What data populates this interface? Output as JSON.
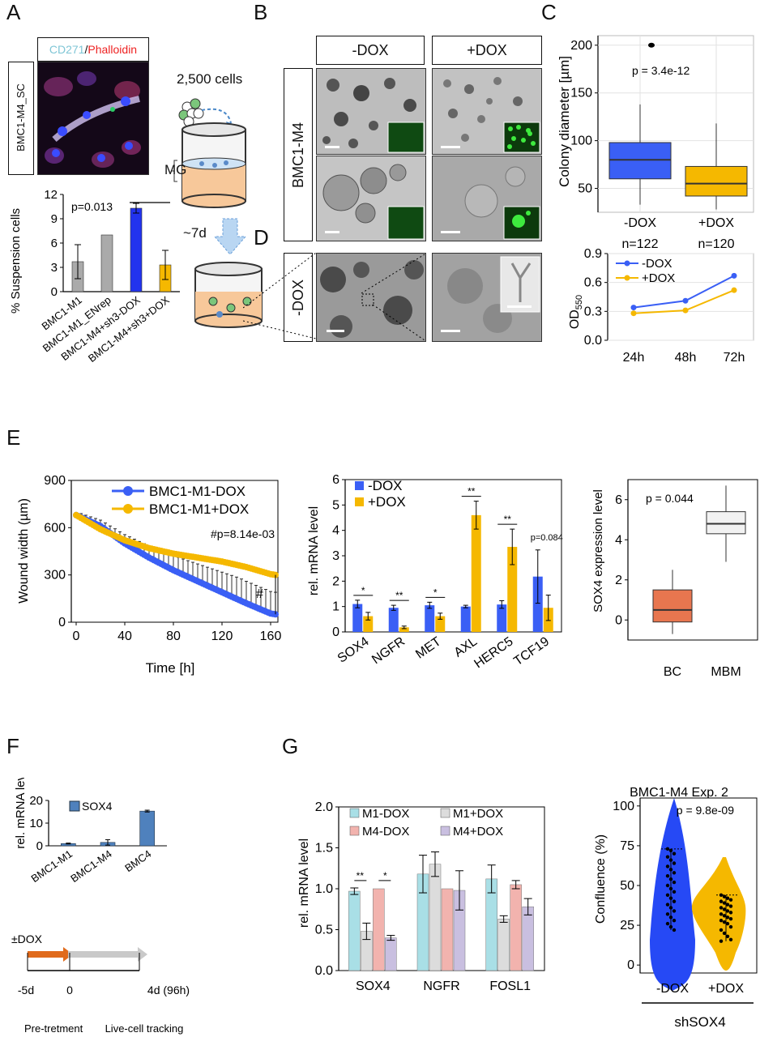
{
  "panels": {
    "A": "A",
    "B": "B",
    "C": "C",
    "D": "D",
    "E": "E",
    "F": "F",
    "G": "G"
  },
  "colors": {
    "blue": "#2233ee",
    "yellow": "#f5b800",
    "gray": "#aaaaaa",
    "orange": "#e8764f",
    "steel": "#4f81bd",
    "cyan": "#a9dfe6",
    "lightgray": "#dcdcdc",
    "pink": "#f2b3ae",
    "lavender": "#c9bfe0",
    "violet": "#3a5ff5"
  },
  "A": {
    "stain_label_1": "CD271",
    "stain_sep": "/",
    "stain_label_2": "Phalloidin",
    "side_label": "BMC1-M4_SC",
    "chart_data": {
      "type": "bar",
      "categories": [
        "BMC1-M1",
        "BMC1-M1_ENrep",
        "BMC1-M4+sh3-DOX",
        "BMC1-M4+sh3+DOX"
      ],
      "values": [
        3.7,
        7.0,
        10.3,
        3.3
      ],
      "errors": [
        2.1,
        0,
        0.6,
        1.8
      ],
      "colors": [
        "#aaaaaa",
        "#aaaaaa",
        "#2233ee",
        "#f5b800"
      ],
      "ylabel": "% Suspension cells",
      "ylim": [
        0,
        12
      ],
      "yticks": [
        "0",
        "3",
        "6",
        "9",
        "12"
      ],
      "annotation": "p=0.013"
    }
  },
  "B": {
    "col_minus": "-DOX",
    "col_plus": "+DOX",
    "row_label": "BMC1-M4",
    "cells_text": "2,500 cells",
    "mg_label": "MG",
    "days_label": "~7d"
  },
  "D": {
    "row_label": "-DOX"
  },
  "C": {
    "box": {
      "type": "box",
      "ylabel": "Colony diameter [µm]",
      "yticks": [
        "50",
        "100",
        "150",
        "200"
      ],
      "ylim": [
        25,
        210
      ],
      "categories": [
        "-DOX",
        "+DOX"
      ],
      "counts": [
        "n=122",
        "n=120"
      ],
      "annotation": "p = 3.4e-12",
      "groups": [
        {
          "name": "-DOX",
          "min": 33,
          "q1": 60,
          "median": 80,
          "q3": 98,
          "max": 138,
          "outlier": 200
        },
        {
          "name": "+DOX",
          "min": 28,
          "q1": 42,
          "median": 55,
          "q3": 73,
          "max": 118
        }
      ]
    },
    "line": {
      "type": "line",
      "ylabel_main": "OD",
      "ylabel_sub": "550",
      "categories": [
        "24h",
        "48h",
        "72h"
      ],
      "yticks": [
        "0.0",
        "0.3",
        "0.6",
        "0.9"
      ],
      "ylim": [
        0,
        0.9
      ],
      "series": [
        {
          "name": "-DOX",
          "values": [
            0.34,
            0.41,
            0.67
          ]
        },
        {
          "name": "+DOX",
          "values": [
            0.28,
            0.31,
            0.52
          ]
        }
      ]
    }
  },
  "E": {
    "wound": {
      "type": "line",
      "xlabel": "Time [h]",
      "ylabel": "Wound width (µm)",
      "xticks": [
        "0",
        "40",
        "80",
        "120",
        "160"
      ],
      "yticks": [
        "0",
        "300",
        "600",
        "900"
      ],
      "xlim": [
        -4,
        166
      ],
      "ylim": [
        0,
        900
      ],
      "annotation": "#p=8.14e-03",
      "hash": "#",
      "series": [
        {
          "name": "BMC1-M1-DOX",
          "anchors": [
            [
              0,
              680
            ],
            [
              20,
              610
            ],
            [
              40,
              500
            ],
            [
              60,
              410
            ],
            [
              80,
              330
            ],
            [
              100,
              260
            ],
            [
              120,
              190
            ],
            [
              140,
              120
            ],
            [
              160,
              55
            ],
            [
              164,
              50
            ]
          ]
        },
        {
          "name": "BMC1-M1+DOX",
          "anchors": [
            [
              0,
              680
            ],
            [
              20,
              590
            ],
            [
              40,
              520
            ],
            [
              60,
              470
            ],
            [
              80,
              435
            ],
            [
              100,
              410
            ],
            [
              120,
              385
            ],
            [
              140,
              350
            ],
            [
              160,
              305
            ],
            [
              164,
              300
            ]
          ]
        }
      ]
    },
    "mrna": {
      "type": "bar",
      "ylabel": "rel. mRNA level",
      "ylim": [
        0,
        6
      ],
      "yticks": [
        "0",
        "1",
        "2",
        "3",
        "4",
        "5",
        "6"
      ],
      "categories": [
        "SOX4",
        "NGFR",
        "MET",
        "AXL",
        "HERC5",
        "TCF19"
      ],
      "series": [
        {
          "name": "-DOX",
          "values": [
            1.1,
            0.95,
            1.05,
            1.0,
            1.08,
            2.18
          ],
          "errors": [
            0.15,
            0.1,
            0.12,
            0.05,
            0.15,
            1.05
          ]
        },
        {
          "name": "+DOX",
          "values": [
            0.62,
            0.18,
            0.62,
            4.6,
            3.35,
            0.95
          ],
          "errors": [
            0.15,
            0.05,
            0.12,
            0.55,
            0.7,
            0.5
          ]
        }
      ],
      "sig": [
        "*",
        "**",
        "*",
        "**",
        "**",
        "p=0.084"
      ]
    },
    "sox4": {
      "type": "box",
      "ylabel": "SOX4 expression level",
      "yticks": [
        "0",
        "2",
        "4",
        "6"
      ],
      "ylim": [
        -1,
        7
      ],
      "categories": [
        "BC",
        "MBM"
      ],
      "annotation": "p = 0.044",
      "groups": [
        {
          "name": "BC",
          "min": -0.7,
          "q1": -0.1,
          "median": 0.5,
          "q3": 1.5,
          "max": 2.5
        },
        {
          "name": "MBM",
          "min": 2.9,
          "q1": 4.3,
          "median": 4.8,
          "q3": 5.4,
          "max": 6.7
        }
      ]
    }
  },
  "F": {
    "chart_data": {
      "type": "bar",
      "ylabel": "rel. mRNA level",
      "ylim": [
        0,
        20
      ],
      "yticks": [
        "0",
        "10",
        "20"
      ],
      "categories": [
        "BMC1-M1",
        "BMC1-M4",
        "BMC4"
      ],
      "series": [
        {
          "name": "SOX4",
          "values": [
            1.0,
            1.5,
            15.3
          ],
          "errors": [
            0.2,
            1.2,
            0.4
          ]
        }
      ]
    },
    "timeline": {
      "dox": "±DOX",
      "t1": "-5d",
      "t2": "0",
      "t3": "4d (96h)",
      "phase1": "Pre-tretment",
      "phase2": "Live-cell tracking"
    }
  },
  "G": {
    "chart_data": {
      "type": "bar",
      "ylabel": "rel. mRNA level",
      "ylim": [
        0,
        2.0
      ],
      "yticks": [
        "0.0",
        "0.5",
        "1.0",
        "1.5",
        "2.0"
      ],
      "categories": [
        "SOX4",
        "NGFR",
        "FOSL1"
      ],
      "series": [
        {
          "name": "M1-DOX",
          "values": [
            0.97,
            1.18,
            1.12
          ],
          "errors": [
            0.04,
            0.23,
            0.17
          ]
        },
        {
          "name": "M1+DOX",
          "values": [
            0.48,
            1.3,
            0.63
          ],
          "errors": [
            0.1,
            0.15,
            0.04
          ]
        },
        {
          "name": "M4-DOX",
          "values": [
            1.0,
            1.0,
            1.05
          ],
          "errors": [
            0.0,
            0.0,
            0.05
          ]
        },
        {
          "name": "M4+DOX",
          "values": [
            0.4,
            0.98,
            0.78
          ],
          "errors": [
            0.03,
            0.24,
            0.1
          ]
        }
      ],
      "sig": [
        "**",
        "*"
      ]
    },
    "violin": {
      "type": "violin",
      "title": "BMC1-M4 Exp. 2",
      "ylabel": "Confluence (%)",
      "yticks": [
        "0",
        "25",
        "50",
        "75",
        "100"
      ],
      "ylim": [
        -5,
        105
      ],
      "categories": [
        "-DOX",
        "+DOX"
      ],
      "group_label": "shSOX4",
      "annotation": "p = 9.8e-09"
    }
  }
}
